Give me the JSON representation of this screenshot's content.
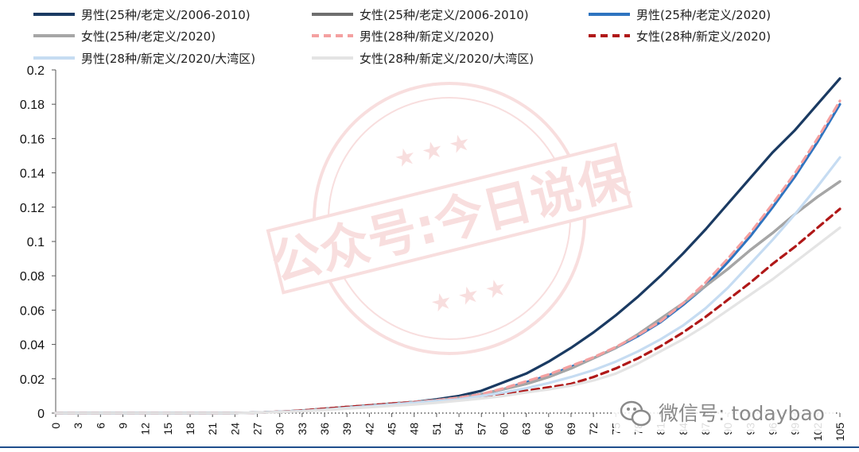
{
  "chart_data": {
    "type": "line",
    "title": "",
    "xlabel": "",
    "ylabel": "",
    "xlim": [
      0,
      105
    ],
    "ylim": [
      0,
      0.2
    ],
    "x_ticks": [
      "0",
      "3",
      "6",
      "9",
      "12",
      "15",
      "18",
      "21",
      "24",
      "27",
      "30",
      "33",
      "36",
      "39",
      "42",
      "45",
      "48",
      "51",
      "54",
      "57",
      "60",
      "63",
      "66",
      "69",
      "72",
      "75",
      "78",
      "81",
      "84",
      "87",
      "90",
      "93",
      "96",
      "99",
      "102",
      "105"
    ],
    "y_ticks": [
      "0",
      "0.02",
      "0.04",
      "0.06",
      "0.08",
      "0.1",
      "0.12",
      "0.14",
      "0.16",
      "0.18",
      "0.2"
    ],
    "legend_position": "top",
    "x": [
      0,
      3,
      6,
      9,
      12,
      15,
      18,
      21,
      24,
      27,
      30,
      33,
      36,
      39,
      42,
      45,
      48,
      51,
      54,
      57,
      60,
      63,
      66,
      69,
      72,
      75,
      78,
      81,
      84,
      87,
      90,
      93,
      96,
      99,
      102,
      105
    ],
    "series": [
      {
        "name": "男性(25种/老定义/2006-2010)",
        "color": "#1a3a62",
        "dash": "solid",
        "values": [
          0,
          0,
          0,
          0,
          0,
          0,
          0,
          0,
          0,
          0.0003,
          0.0008,
          0.0015,
          0.0025,
          0.0035,
          0.0045,
          0.0055,
          0.0065,
          0.008,
          0.01,
          0.013,
          0.018,
          0.023,
          0.03,
          0.038,
          0.047,
          0.057,
          0.068,
          0.08,
          0.093,
          0.107,
          0.122,
          0.137,
          0.152,
          0.165,
          0.18,
          0.195
        ]
      },
      {
        "name": "女性(25种/老定义/2006-2010)",
        "color": "#6e6e6e",
        "dash": "solid",
        "values": [
          0,
          0,
          0,
          0,
          0,
          0,
          0,
          0,
          0,
          0.0003,
          0.0008,
          0.0015,
          0.0025,
          0.0035,
          0.0045,
          0.0055,
          0.0065,
          0.0075,
          0.009,
          0.011,
          0.014,
          0.017,
          0.021,
          0.026,
          0.032,
          0.038,
          0.046,
          0.055,
          0.064,
          0.074,
          0.084,
          0.095,
          0.105,
          0.116,
          0.126,
          0.135
        ]
      },
      {
        "name": "男性(25种/老定义/2020)",
        "color": "#2e74c0",
        "dash": "solid",
        "values": [
          0,
          0,
          0,
          0,
          0,
          0,
          0,
          0,
          0,
          0.0003,
          0.0008,
          0.0015,
          0.0025,
          0.0035,
          0.0045,
          0.0055,
          0.0065,
          0.0075,
          0.009,
          0.011,
          0.014,
          0.018,
          0.022,
          0.027,
          0.032,
          0.038,
          0.045,
          0.053,
          0.063,
          0.074,
          0.088,
          0.103,
          0.12,
          0.138,
          0.158,
          0.18
        ]
      },
      {
        "name": "女性(25种/老定义/2020)",
        "color": "#a6a6a6",
        "dash": "solid",
        "values": [
          0,
          0,
          0,
          0,
          0,
          0,
          0,
          0,
          0,
          0.0003,
          0.0008,
          0.0015,
          0.0025,
          0.0035,
          0.0045,
          0.0055,
          0.0065,
          0.0075,
          0.009,
          0.011,
          0.014,
          0.017,
          0.021,
          0.026,
          0.032,
          0.038,
          0.046,
          0.055,
          0.064,
          0.074,
          0.084,
          0.095,
          0.105,
          0.116,
          0.126,
          0.135
        ]
      },
      {
        "name": "男性(28种/新定义/2020)",
        "color": "#f4a0a0",
        "dash": "dash",
        "values": [
          0,
          0,
          0,
          0,
          0,
          0,
          0,
          0,
          0,
          0.0003,
          0.0008,
          0.0015,
          0.0025,
          0.0035,
          0.0045,
          0.0055,
          0.0065,
          0.0075,
          0.009,
          0.011,
          0.0145,
          0.0185,
          0.0225,
          0.0275,
          0.0325,
          0.0385,
          0.0455,
          0.0535,
          0.064,
          0.076,
          0.09,
          0.105,
          0.122,
          0.14,
          0.16,
          0.182
        ]
      },
      {
        "name": "女性(28种/新定义/2020)",
        "color": "#b01818",
        "dash": "dash",
        "values": [
          0,
          0,
          0,
          0,
          0,
          0,
          0,
          0,
          0,
          0.0003,
          0.0008,
          0.0015,
          0.0025,
          0.0035,
          0.0045,
          0.0055,
          0.0062,
          0.007,
          0.008,
          0.0095,
          0.0115,
          0.013,
          0.015,
          0.017,
          0.021,
          0.026,
          0.032,
          0.039,
          0.047,
          0.056,
          0.066,
          0.076,
          0.087,
          0.097,
          0.108,
          0.119
        ]
      },
      {
        "name": "男性(28种/新定义/2020/大湾区)",
        "color": "#c6dcf2",
        "dash": "solid",
        "values": [
          0,
          0,
          0,
          0,
          0,
          0,
          0,
          0,
          0,
          0.0003,
          0.0008,
          0.0012,
          0.002,
          0.003,
          0.004,
          0.005,
          0.006,
          0.007,
          0.008,
          0.01,
          0.012,
          0.0145,
          0.0175,
          0.021,
          0.025,
          0.03,
          0.036,
          0.043,
          0.051,
          0.061,
          0.073,
          0.087,
          0.101,
          0.116,
          0.132,
          0.149
        ]
      },
      {
        "name": "女性(28种/新定义/2020/大湾区)",
        "color": "#e4e4e4",
        "dash": "solid",
        "values": [
          0,
          0,
          0,
          0,
          0,
          0,
          0,
          0,
          0,
          0.0003,
          0.0006,
          0.001,
          0.0018,
          0.0026,
          0.0034,
          0.0042,
          0.005,
          0.006,
          0.0072,
          0.0085,
          0.01,
          0.012,
          0.0138,
          0.016,
          0.019,
          0.023,
          0.029,
          0.036,
          0.043,
          0.051,
          0.06,
          0.069,
          0.078,
          0.088,
          0.098,
          0.108
        ]
      }
    ]
  },
  "watermark": {
    "stamp_text": "公众号:今日说保",
    "wechat_text": "微信号: todaybao",
    "wechat_icon": "wechat-icon"
  }
}
